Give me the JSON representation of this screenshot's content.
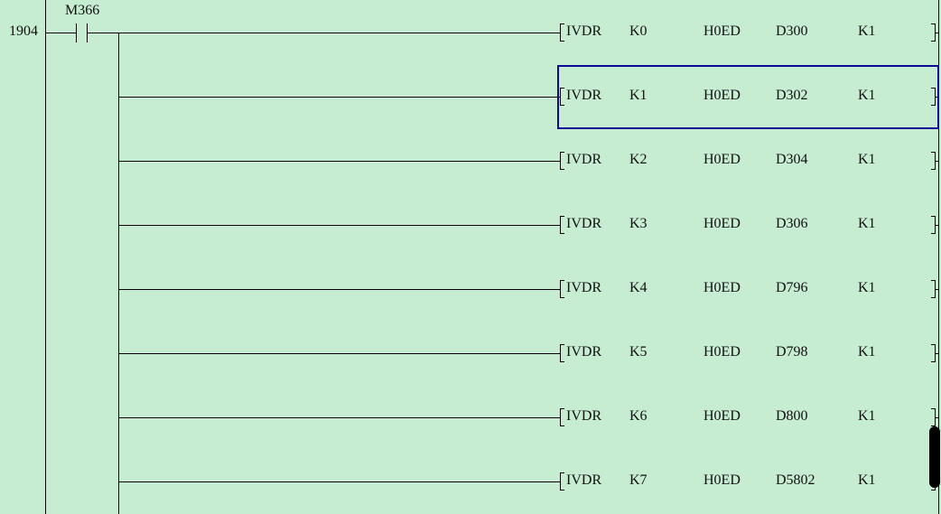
{
  "rung": {
    "step": "1904",
    "contact": "M366"
  },
  "instructions": [
    {
      "op": "IVDR",
      "a": "K0",
      "b": "H0ED",
      "c": "D300",
      "d": "K1"
    },
    {
      "op": "IVDR",
      "a": "K1",
      "b": "H0ED",
      "c": "D302",
      "d": "K1"
    },
    {
      "op": "IVDR",
      "a": "K2",
      "b": "H0ED",
      "c": "D304",
      "d": "K1"
    },
    {
      "op": "IVDR",
      "a": "K3",
      "b": "H0ED",
      "c": "D306",
      "d": "K1"
    },
    {
      "op": "IVDR",
      "a": "K4",
      "b": "H0ED",
      "c": "D796",
      "d": "K1"
    },
    {
      "op": "IVDR",
      "a": "K5",
      "b": "H0ED",
      "c": "D798",
      "d": "K1"
    },
    {
      "op": "IVDR",
      "a": "K6",
      "b": "H0ED",
      "c": "D800",
      "d": "K1"
    },
    {
      "op": "IVDR",
      "a": "K7",
      "b": "H0ED",
      "c": "D5802",
      "d": "K1"
    }
  ],
  "selected_index": 1,
  "colors": {
    "background": "#c6ecd2",
    "cursor": "#0a0a96"
  }
}
